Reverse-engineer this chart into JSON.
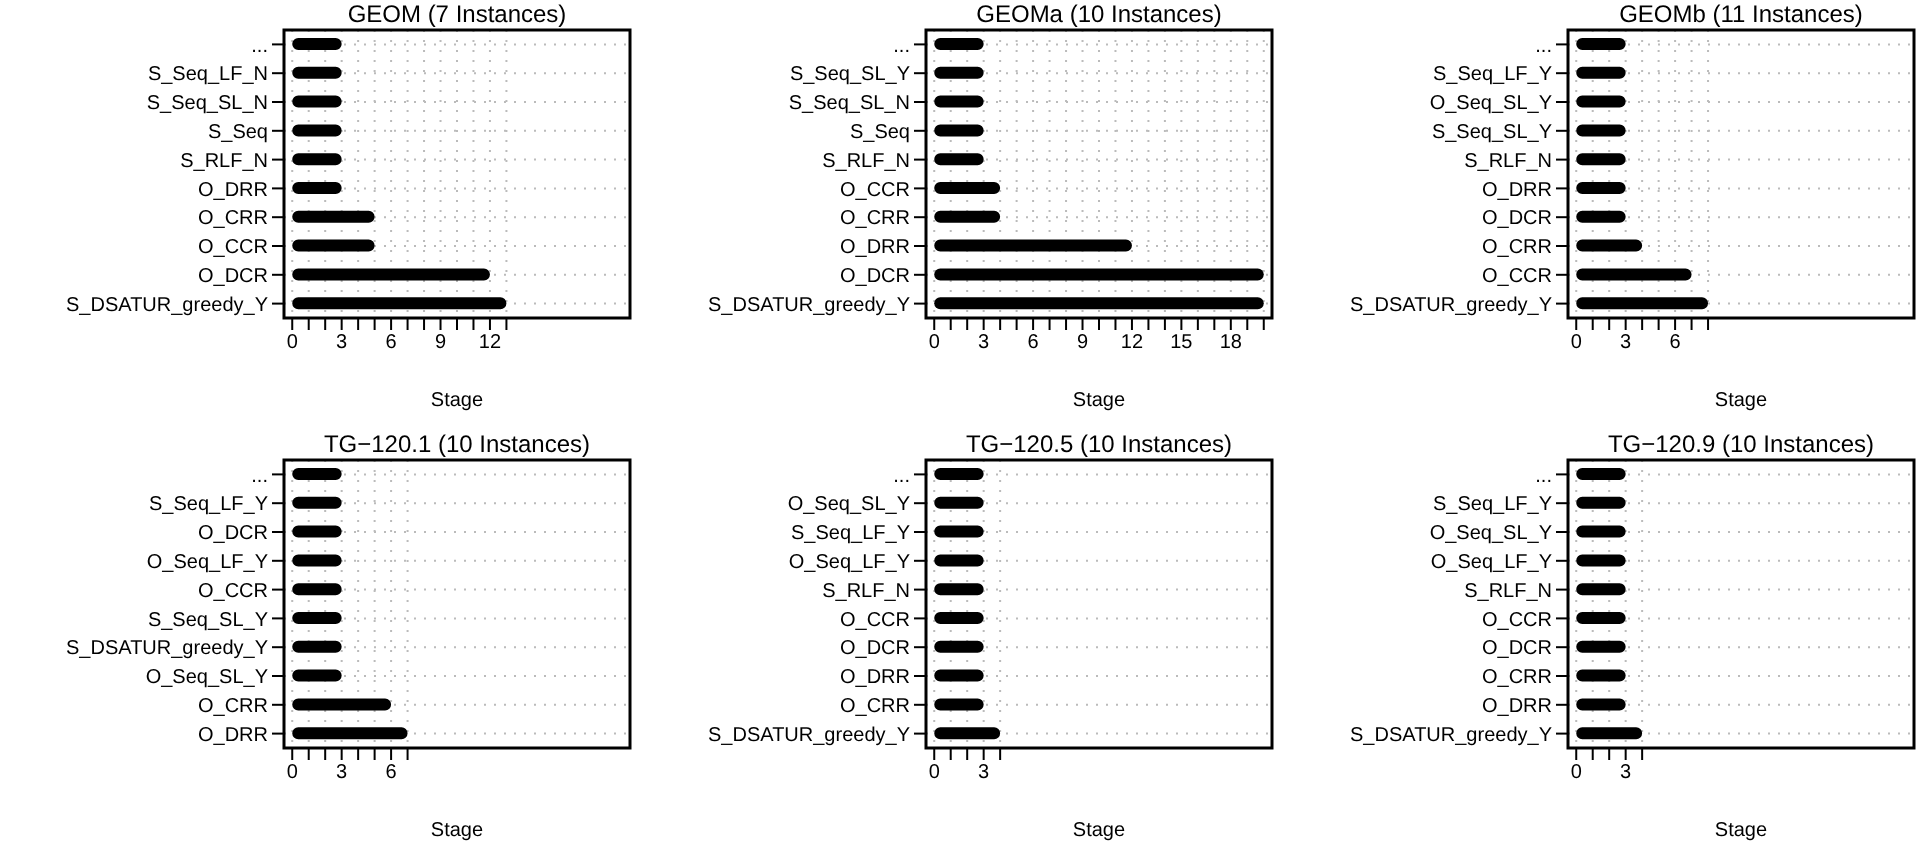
{
  "chart_data": [
    {
      "type": "bar",
      "orientation": "horizontal",
      "title": "GEOM (7 Instances)",
      "xlabel": "Stage",
      "grid": true,
      "color": "#000000",
      "categories": [
        "...",
        "S_Seq_LF_N",
        "S_Seq_SL_N",
        "S_Seq",
        "S_RLF_N",
        "O_DRR",
        "O_CRR",
        "O_CCR",
        "O_DCR",
        "S_DSATUR_greedy_Y"
      ],
      "values": [
        3,
        3,
        3,
        3,
        3,
        3,
        5,
        5,
        12,
        13
      ],
      "xlim": [
        -0.5,
        20.5
      ],
      "xticks": [
        0,
        {
          "value": 1,
          "label": null
        },
        {
          "value": 2,
          "label": null
        },
        3,
        {
          "value": 4,
          "label": null
        },
        {
          "value": 5,
          "label": null
        },
        6,
        {
          "value": 7,
          "label": null
        },
        {
          "value": 8,
          "label": null
        },
        9,
        {
          "value": 10,
          "label": null
        },
        {
          "value": 11,
          "label": null
        },
        12,
        {
          "value": 13,
          "label": null
        }
      ]
    },
    {
      "type": "bar",
      "orientation": "horizontal",
      "title": "GEOMa (10 Instances)",
      "xlabel": "Stage",
      "grid": true,
      "color": "#000000",
      "categories": [
        "...",
        "S_Seq_SL_Y",
        "S_Seq_SL_N",
        "S_Seq",
        "S_RLF_N",
        "O_CCR",
        "O_CRR",
        "O_DRR",
        "O_DCR",
        "S_DSATUR_greedy_Y"
      ],
      "values": [
        3,
        3,
        3,
        3,
        3,
        4,
        4,
        12,
        20,
        20
      ],
      "xlim": [
        -0.5,
        20.5
      ],
      "xticks": [
        0,
        {
          "value": 1,
          "label": null
        },
        {
          "value": 2,
          "label": null
        },
        3,
        {
          "value": 4,
          "label": null
        },
        {
          "value": 5,
          "label": null
        },
        6,
        {
          "value": 7,
          "label": null
        },
        {
          "value": 8,
          "label": null
        },
        9,
        {
          "value": 10,
          "label": null
        },
        {
          "value": 11,
          "label": null
        },
        12,
        {
          "value": 13,
          "label": null
        },
        {
          "value": 14,
          "label": null
        },
        15,
        {
          "value": 16,
          "label": null
        },
        {
          "value": 17,
          "label": null
        },
        18,
        {
          "value": 19,
          "label": null
        },
        {
          "value": 20,
          "label": null
        }
      ]
    },
    {
      "type": "bar",
      "orientation": "horizontal",
      "title": "GEOMb (11 Instances)",
      "xlabel": "Stage",
      "grid": true,
      "color": "#000000",
      "categories": [
        "...",
        "S_Seq_LF_Y",
        "O_Seq_SL_Y",
        "S_Seq_SL_Y",
        "S_RLF_N",
        "O_DRR",
        "O_DCR",
        "O_CRR",
        "O_CCR",
        "S_DSATUR_greedy_Y"
      ],
      "values": [
        3,
        3,
        3,
        3,
        3,
        3,
        3,
        4,
        7,
        8
      ],
      "xlim": [
        -0.5,
        20.5
      ],
      "xticks": [
        0,
        {
          "value": 1,
          "label": null
        },
        {
          "value": 2,
          "label": null
        },
        3,
        {
          "value": 4,
          "label": null
        },
        {
          "value": 5,
          "label": null
        },
        6,
        {
          "value": 7,
          "label": null
        },
        {
          "value": 8,
          "label": null
        }
      ]
    },
    {
      "type": "bar",
      "orientation": "horizontal",
      "title": "TG−120.1 (10 Instances)",
      "xlabel": "Stage",
      "grid": true,
      "color": "#000000",
      "categories": [
        "...",
        "S_Seq_LF_Y",
        "O_DCR",
        "O_Seq_LF_Y",
        "O_CCR",
        "S_Seq_SL_Y",
        "S_DSATUR_greedy_Y",
        "O_Seq_SL_Y",
        "O_CRR",
        "O_DRR"
      ],
      "values": [
        3,
        3,
        3,
        3,
        3,
        3,
        3,
        3,
        6,
        7
      ],
      "xlim": [
        -0.5,
        20.5
      ],
      "xticks": [
        0,
        {
          "value": 1,
          "label": null
        },
        {
          "value": 2,
          "label": null
        },
        3,
        {
          "value": 4,
          "label": null
        },
        {
          "value": 5,
          "label": null
        },
        6,
        {
          "value": 7,
          "label": null
        }
      ]
    },
    {
      "type": "bar",
      "orientation": "horizontal",
      "title": "TG−120.5 (10 Instances)",
      "xlabel": "Stage",
      "grid": true,
      "color": "#000000",
      "categories": [
        "...",
        "O_Seq_SL_Y",
        "S_Seq_LF_Y",
        "O_Seq_LF_Y",
        "S_RLF_N",
        "O_CCR",
        "O_DCR",
        "O_DRR",
        "O_CRR",
        "S_DSATUR_greedy_Y"
      ],
      "values": [
        3,
        3,
        3,
        3,
        3,
        3,
        3,
        3,
        3,
        4
      ],
      "xlim": [
        -0.5,
        20.5
      ],
      "xticks": [
        0,
        {
          "value": 1,
          "label": null
        },
        {
          "value": 2,
          "label": null
        },
        3,
        {
          "value": 4,
          "label": null
        }
      ]
    },
    {
      "type": "bar",
      "orientation": "horizontal",
      "title": "TG−120.9 (10 Instances)",
      "xlabel": "Stage",
      "grid": true,
      "color": "#000000",
      "categories": [
        "...",
        "S_Seq_LF_Y",
        "O_Seq_SL_Y",
        "O_Seq_LF_Y",
        "S_RLF_N",
        "O_CCR",
        "O_DCR",
        "O_CRR",
        "O_DRR",
        "S_DSATUR_greedy_Y"
      ],
      "values": [
        3,
        3,
        3,
        3,
        3,
        3,
        3,
        3,
        3,
        4
      ],
      "xlim": [
        -0.5,
        20.5
      ],
      "xticks": [
        0,
        {
          "value": 1,
          "label": null
        },
        {
          "value": 2,
          "label": null
        },
        3,
        {
          "value": 4,
          "label": null
        }
      ]
    }
  ]
}
